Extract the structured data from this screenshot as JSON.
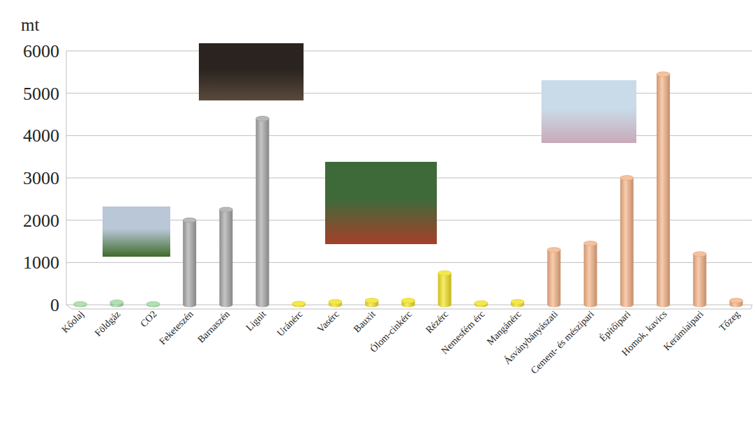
{
  "chart_data": {
    "type": "bar",
    "ylabel": "mt",
    "categories": [
      "Kőolaj",
      "Földgáz",
      "CO2",
      "Feketeszén",
      "Barnaszén",
      "Lignit",
      "Uránérc",
      "Vasérc",
      "Bauxit",
      "Ólom-cinkérc",
      "Rézérc",
      "Nemesfém érc",
      "Mangánérc",
      "Ásványbányászati",
      "Cement- és mészipari",
      "Építőipari",
      "Homok, kavics",
      "Kerámiaipari",
      "Tőzeg"
    ],
    "values": [
      20,
      60,
      20,
      2000,
      2250,
      4400,
      30,
      70,
      100,
      100,
      750,
      40,
      70,
      1300,
      1450,
      3000,
      5450,
      1200,
      100
    ],
    "colors": [
      "#9fd89f",
      "#9fd89f",
      "#9fd89f",
      "#a6a6a6",
      "#a6a6a6",
      "#a6a6a6",
      "#f2e21e",
      "#f2e21e",
      "#f2e21e",
      "#f2e21e",
      "#f2e21e",
      "#f2e21e",
      "#f2e21e",
      "#f4b183",
      "#f4b183",
      "#f4b183",
      "#f4b183",
      "#f4b183",
      "#f4b183"
    ],
    "ylim": [
      0,
      6000
    ],
    "yticks": [
      0,
      1000,
      2000,
      3000,
      4000,
      5000,
      6000
    ],
    "grid": true
  }
}
